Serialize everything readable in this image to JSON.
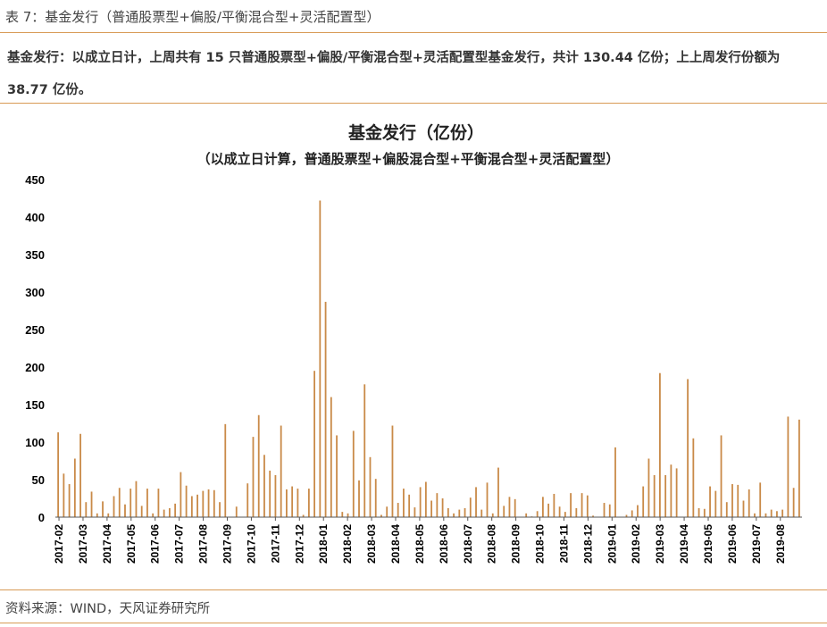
{
  "caption": "表 7：基金发行（普通股票型+偏股/平衡混合型+灵活配置型）",
  "summary": "基金发行：以成立日计，上周共有 15 只普通股票型+偏股/平衡混合型+灵活配置型基金发行，共计 130.44 亿份；上上周发行份额为 38.77 亿份。",
  "source": "资料来源：WIND，天风证券研究所",
  "colors": {
    "bar": "#c98a48",
    "rule": "#d89a55",
    "axis": "#555555"
  },
  "chart_data": {
    "type": "bar",
    "title": "基金发行（亿份）",
    "subtitle": "（以成立日计算，普通股票型+偏股混合型+平衡混合型+灵活配置型）",
    "ylim": [
      0,
      450
    ],
    "yticks": [
      0,
      50,
      100,
      150,
      200,
      250,
      300,
      350,
      400,
      450
    ],
    "xtick_labels": [
      "2017-02",
      "2017-03",
      "2017-04",
      "2017-05",
      "2017-06",
      "2017-07",
      "2017-08",
      "2017-09",
      "2017-10",
      "2017-11",
      "2017-12",
      "2018-01",
      "2018-02",
      "2018-03",
      "2018-04",
      "2018-05",
      "2018-06",
      "2018-07",
      "2018-08",
      "2018-09",
      "2018-10",
      "2018-11",
      "2018-12",
      "2019-01",
      "2019-02",
      "2019-03",
      "2019-04",
      "2019-05",
      "2019-06",
      "2019-07",
      "2019-08"
    ],
    "grid": false,
    "legend": "none",
    "values": [
      113,
      58,
      44,
      78,
      111,
      20,
      34,
      5,
      21,
      5,
      28,
      39,
      17,
      38,
      48,
      15,
      38,
      5,
      38,
      10,
      12,
      18,
      60,
      42,
      28,
      30,
      35,
      37,
      36,
      20,
      124,
      0,
      14,
      0,
      45,
      107,
      136,
      83,
      62,
      56,
      122,
      37,
      41,
      38,
      3,
      38,
      195,
      422,
      287,
      160,
      109,
      7,
      5,
      115,
      49,
      177,
      80,
      51,
      3,
      14,
      122,
      19,
      38,
      30,
      13,
      40,
      47,
      22,
      32,
      25,
      12,
      5,
      10,
      12,
      26,
      40,
      10,
      46,
      5,
      66,
      15,
      27,
      24,
      0,
      5,
      1,
      8,
      27,
      18,
      31,
      14,
      7,
      32,
      12,
      32,
      29,
      2,
      0,
      19,
      17,
      93,
      0,
      3,
      9,
      16,
      41,
      78,
      56,
      192,
      56,
      70,
      65,
      0,
      184,
      105,
      12,
      11,
      41,
      35,
      109,
      20,
      44,
      43,
      22,
      37,
      5,
      46,
      5,
      10,
      8,
      10,
      134,
      39,
      130
    ]
  }
}
